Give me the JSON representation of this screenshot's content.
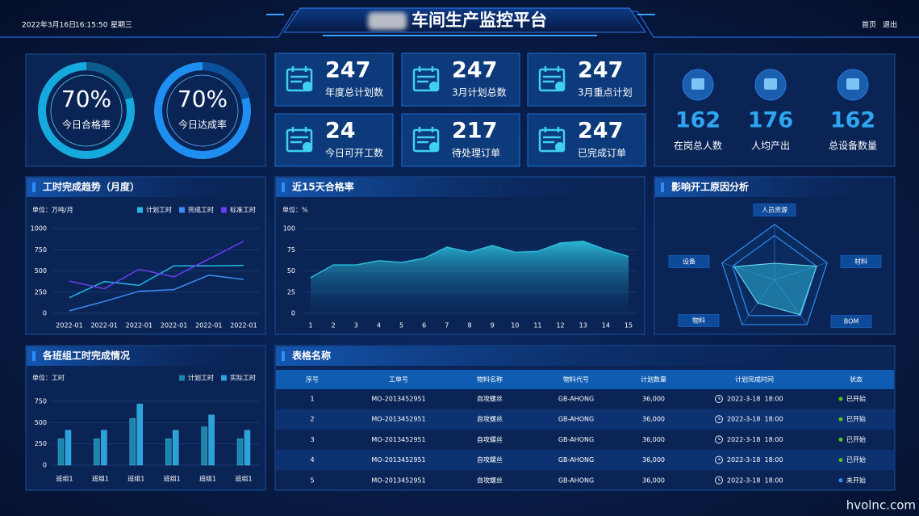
{
  "header": {
    "date": "2022年3月16日",
    "time": "16:15:50",
    "weekday": "星期三",
    "title": "车间生产监控平台",
    "nav": [
      "首页",
      "退出"
    ]
  },
  "gauges": [
    {
      "label": "70%",
      "name": "今日合格率"
    },
    {
      "label": "70%",
      "name": "今日达成率"
    }
  ],
  "stats": [
    {
      "value": 247,
      "label": "年度总计划数"
    },
    {
      "value": 247,
      "label": "3月计划总数"
    },
    {
      "value": 247,
      "label": "3月重点计划"
    },
    {
      "value": 24,
      "label": "今日可开工数"
    },
    {
      "value": 217,
      "label": "待处理订单"
    },
    {
      "value": 247,
      "label": "已完成订单"
    }
  ],
  "people": [
    {
      "value": 162,
      "label": "在岗总人数"
    },
    {
      "value": 176,
      "label": "人均产出"
    },
    {
      "value": 162,
      "label": "总设备数量"
    }
  ],
  "trend": {
    "type": "line",
    "title": "工时完成趋势（月度）",
    "unit": "单位：万吨/月",
    "categories": [
      "2022-01",
      "2022-01",
      "2022-01",
      "2022-01",
      "2022-01",
      "2022-01"
    ],
    "ylim": [
      0,
      1000
    ],
    "yticks": [
      0,
      250,
      500,
      750,
      1000
    ],
    "grid": true,
    "series": [
      {
        "name": "计划工时",
        "color": "#22b8e6",
        "values": [
          185,
          375,
          330,
          560,
          560,
          565
        ]
      },
      {
        "name": "完成工时",
        "color": "#3d8df5",
        "values": [
          30,
          140,
          260,
          280,
          450,
          400
        ]
      },
      {
        "name": "标准工时",
        "color": "#6b3df2",
        "values": [
          380,
          290,
          520,
          430,
          640,
          850
        ]
      }
    ]
  },
  "pass_rate": {
    "type": "area",
    "title": "近15天合格率",
    "unit": "单位：%",
    "categories": [
      1,
      2,
      3,
      4,
      5,
      6,
      7,
      8,
      9,
      10,
      11,
      12,
      13,
      14,
      15
    ],
    "values": [
      42,
      57,
      57,
      62,
      60,
      65,
      78,
      72,
      80,
      72,
      73,
      83,
      85,
      75,
      67
    ],
    "color": "#2bbbd9",
    "ylim": [
      0,
      100
    ],
    "yticks": [
      0,
      25,
      50,
      75,
      100
    ],
    "grid": true
  },
  "radar": {
    "type": "radar",
    "title": "影响开工原因分析",
    "categories": [
      "人员资源",
      "材料",
      "BOM",
      "物料",
      "设备"
    ],
    "values": [
      30,
      80,
      78,
      52,
      77
    ],
    "rlim": [
      0,
      100
    ],
    "color": "#2bb5d8"
  },
  "team_hours": {
    "type": "bar",
    "title": "各班组工时完成情况",
    "unit": "单位：工时",
    "categories": [
      "班组1",
      "班组1",
      "班组1",
      "班组1",
      "班组1",
      "班组1"
    ],
    "ylim": [
      0,
      900
    ],
    "yticks": [
      0,
      250,
      500,
      750
    ],
    "grid": true,
    "series": [
      {
        "name": "计划工时",
        "color": "#1a86ad",
        "values": [
          310,
          310,
          550,
          310,
          450,
          310
        ]
      },
      {
        "name": "实际工时",
        "color": "#2aa2dc",
        "values": [
          410,
          410,
          720,
          410,
          590,
          410
        ]
      }
    ]
  },
  "table": {
    "title": "表格名称",
    "columns": [
      "序号",
      "工单号",
      "物料名称",
      "物料代号",
      "计划数量",
      "计划完成时间",
      "状态"
    ],
    "rows": [
      [
        "1",
        "MO-2013452951",
        "自攻螺丝",
        "GB-AHONG",
        "36,000",
        "2022-3-18  18:00",
        "已开始"
      ],
      [
        "2",
        "MO-2013452951",
        "自攻螺丝",
        "GB-AHONG",
        "36,000",
        "2022-3-18  18:00",
        "已开始"
      ],
      [
        "3",
        "MO-2013452951",
        "自攻螺丝",
        "GB-AHONG",
        "36,000",
        "2022-3-18  18:00",
        "已开始"
      ],
      [
        "4",
        "MO-2013452951",
        "自攻螺丝",
        "GB-AHONG",
        "36,000",
        "2022-3-18  18:00",
        "已开始"
      ],
      [
        "5",
        "MO-2013452951",
        "自攻螺丝",
        "GB-AHONG",
        "36,000",
        "2022-3-18  18:00",
        "未开始"
      ]
    ],
    "status_colors": [
      "#52c41a",
      "#52c41a",
      "#52c41a",
      "#52c41a",
      "#2f8ff5"
    ]
  },
  "watermark": "hvolnc.com"
}
